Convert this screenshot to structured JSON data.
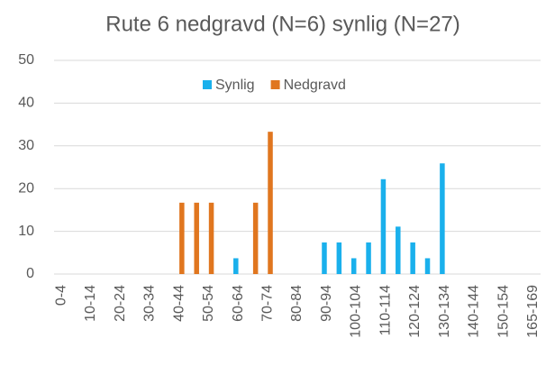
{
  "chart_data": {
    "type": "bar",
    "title": "Rute 6 nedgravd (N=6) synlig (N=27)",
    "categories": [
      "0-4",
      null,
      "10-14",
      null,
      "20-24",
      null,
      "30-34",
      null,
      "40-44",
      null,
      "50-54",
      null,
      "60-64",
      null,
      "70-74",
      null,
      "80-84",
      null,
      "90-94",
      null,
      "100-104",
      null,
      "110-114",
      null,
      "120-124",
      null,
      "130-134",
      null,
      "140-144",
      null,
      "150-154",
      null,
      "165-169"
    ],
    "series": [
      {
        "name": "Synlig",
        "color": "#1ab0ec",
        "values": [
          0,
          0,
          0,
          0,
          0,
          0,
          0,
          0,
          0,
          0,
          0,
          0,
          3.7,
          0,
          0,
          0,
          0,
          0,
          7.4,
          7.4,
          3.7,
          7.4,
          22.2,
          11.1,
          7.4,
          3.7,
          25.9,
          0,
          0,
          0,
          0,
          0,
          0
        ]
      },
      {
        "name": "Nedgravd",
        "color": "#e0761f",
        "values": [
          0,
          0,
          0,
          0,
          0,
          0,
          0,
          0,
          16.7,
          16.7,
          16.7,
          0,
          0,
          16.7,
          33.3,
          0,
          0,
          0,
          0,
          0,
          0,
          0,
          0,
          0,
          0,
          0,
          0,
          0,
          0,
          0,
          0,
          0,
          0
        ]
      }
    ],
    "ylim": [
      0,
      50
    ],
    "yticks": [
      0,
      10,
      20,
      30,
      40,
      50
    ],
    "grid": true,
    "legend": "top"
  }
}
